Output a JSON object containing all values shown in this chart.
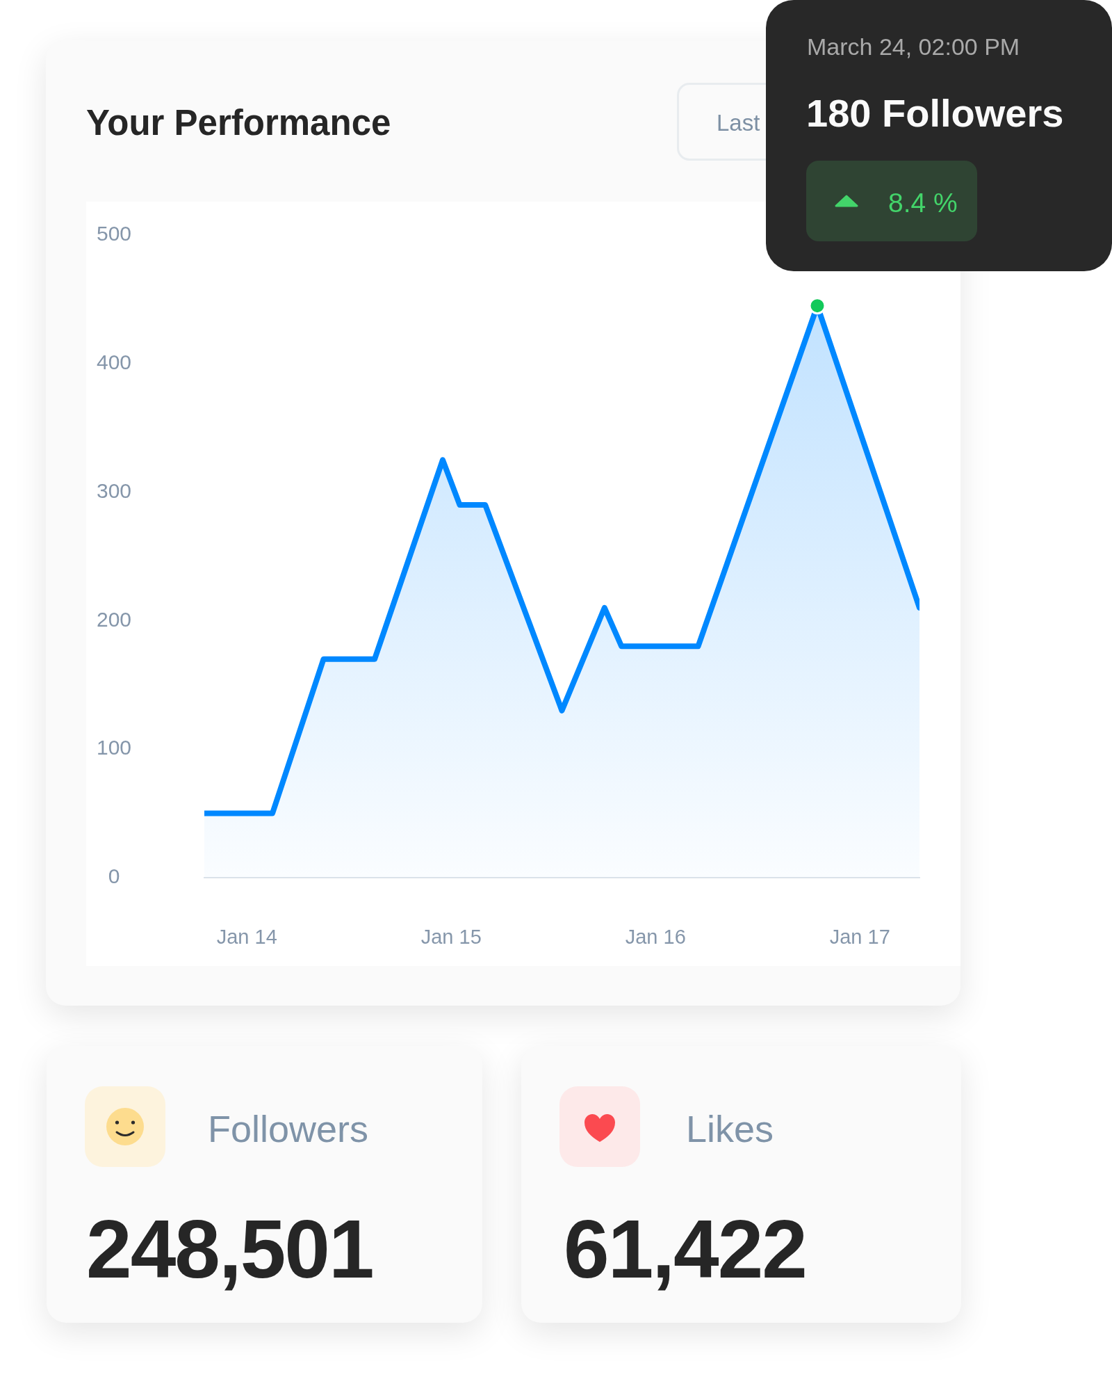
{
  "chart_data": [
    {
      "type": "area",
      "title": "Your Performance",
      "x": [
        "--01-13T19:00",
        "--01-14T03:00",
        "--01-14T09:00",
        "--01-14T15:00",
        "--01-14T23:00",
        "--01-15T01:00",
        "--01-15T04:00",
        "--01-15T13:00",
        "--01-15T18:00",
        "--01-15T20:00",
        "--01-16T05:00",
        "--01-16T19:00",
        "--01-17T07:00"
      ],
      "series": [
        {
          "color": "#0088ff",
          "values": [
            50,
            50,
            170,
            170,
            325,
            290,
            290,
            130,
            210,
            180,
            180,
            445,
            210
          ]
        },
        {
          "type": "scatter",
          "color": "#12c95a",
          "x": [
            "--01-16T19:00"
          ],
          "values": [
            445
          ]
        }
      ],
      "xlim": [
        "--01-13T19:00",
        "--01-17T07:00"
      ],
      "xticks": [
        {
          "value": "--01-14",
          "label": "Jan 14"
        },
        {
          "value": "--01-15",
          "label": "Jan 15"
        },
        {
          "value": "--01-16",
          "label": "Jan 16"
        },
        {
          "value": "--01-17",
          "label": "Jan 17"
        }
      ],
      "ylim": [
        0,
        500
      ],
      "yticks": [
        0,
        100,
        200,
        300,
        400,
        500
      ],
      "annotations": [
        "Last",
        "March 24, 02:00 PM",
        "180 Followers",
        "8.4 %"
      ]
    },
    {
      "type": "other",
      "annotations": [
        "Followers",
        "248,501"
      ]
    },
    {
      "type": "other",
      "annotations": [
        "Likes",
        "61,422"
      ]
    }
  ]
}
